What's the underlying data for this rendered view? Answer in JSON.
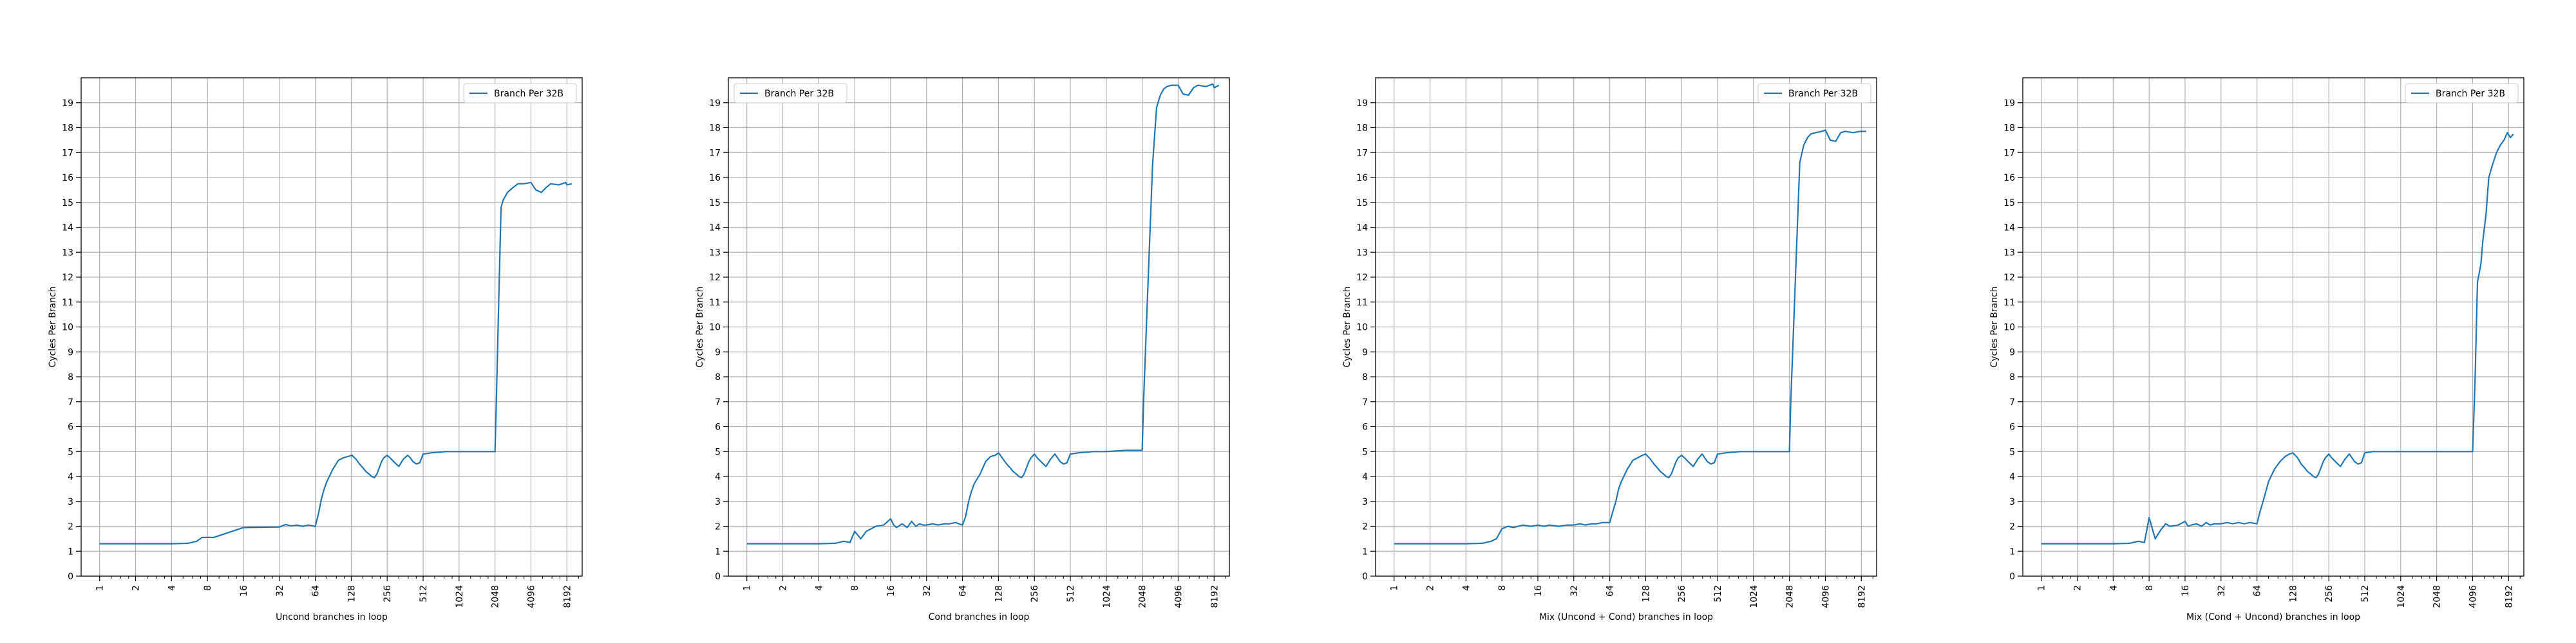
{
  "chart_data": [
    {
      "type": "line",
      "xlabel": "Uncond branches in loop",
      "ylabel": "Cycles Per Branch",
      "xscale": "log2",
      "xlim": [
        0.7,
        11000
      ],
      "ylim": [
        0,
        20
      ],
      "xticks": [
        1,
        2,
        4,
        8,
        16,
        32,
        64,
        128,
        256,
        512,
        1024,
        2048,
        4096,
        8192
      ],
      "yticks": [
        0,
        1,
        2,
        3,
        4,
        5,
        6,
        7,
        8,
        9,
        10,
        11,
        12,
        13,
        14,
        15,
        16,
        17,
        18,
        19
      ],
      "grid": true,
      "legend_position": "upper right",
      "series": [
        {
          "name": "Branch Per 32B",
          "color": "#1f77b4",
          "x": [
            1,
            2,
            4,
            5.5,
            6.5,
            7.2,
            8,
            9,
            16,
            32,
            36,
            40,
            45,
            50,
            56,
            64,
            68,
            72,
            76,
            80,
            90,
            100,
            110,
            120,
            130,
            140,
            150,
            160,
            170,
            180,
            190,
            200,
            210,
            220,
            230,
            240,
            256,
            270,
            290,
            320,
            350,
            380,
            400,
            420,
            450,
            480,
            512,
            600,
            800,
            1024,
            1500,
            2000,
            2048,
            2100,
            2200,
            2300,
            2400,
            2600,
            2900,
            3200,
            3600,
            4096,
            4500,
            5000,
            5500,
            6000,
            7000,
            8000,
            8192,
            9000
          ],
          "values": [
            1.3,
            1.3,
            1.3,
            1.32,
            1.4,
            1.55,
            1.55,
            1.55,
            1.95,
            1.97,
            2.07,
            2.02,
            2.05,
            2.0,
            2.05,
            2.0,
            2.5,
            3.1,
            3.5,
            3.8,
            4.3,
            4.65,
            4.75,
            4.8,
            4.85,
            4.7,
            4.5,
            4.35,
            4.2,
            4.1,
            4.0,
            3.95,
            4.1,
            4.35,
            4.6,
            4.75,
            4.85,
            4.75,
            4.6,
            4.4,
            4.7,
            4.85,
            4.75,
            4.6,
            4.5,
            4.55,
            4.9,
            4.95,
            5.0,
            5.0,
            5.0,
            5.0,
            5.0,
            7.0,
            11.0,
            14.8,
            15.1,
            15.4,
            15.6,
            15.75,
            15.75,
            15.8,
            15.5,
            15.4,
            15.6,
            15.75,
            15.7,
            15.8,
            15.7,
            15.75
          ]
        }
      ]
    },
    {
      "type": "line",
      "xlabel": "Cond branches in loop",
      "ylabel": "Cycles Per Branch",
      "xscale": "log2",
      "xlim": [
        0.7,
        11000
      ],
      "ylim": [
        0,
        20
      ],
      "xticks": [
        1,
        2,
        4,
        8,
        16,
        32,
        64,
        128,
        256,
        512,
        1024,
        2048,
        4096,
        8192
      ],
      "yticks": [
        0,
        1,
        2,
        3,
        4,
        5,
        6,
        7,
        8,
        9,
        10,
        11,
        12,
        13,
        14,
        15,
        16,
        17,
        18,
        19
      ],
      "grid": true,
      "legend_position": "upper left",
      "series": [
        {
          "name": "Branch Per 32B",
          "color": "#1f77b4",
          "x": [
            1,
            2,
            4,
            5.5,
            6.5,
            7.3,
            8,
            9,
            10,
            11,
            12,
            14,
            16,
            17,
            18,
            20,
            22,
            24,
            26,
            28,
            30,
            32,
            36,
            40,
            45,
            50,
            56,
            64,
            68,
            72,
            76,
            80,
            90,
            100,
            110,
            120,
            128,
            140,
            150,
            160,
            170,
            180,
            190,
            200,
            210,
            220,
            230,
            240,
            256,
            270,
            290,
            320,
            350,
            380,
            400,
            420,
            450,
            480,
            512,
            600,
            800,
            1024,
            1500,
            2048,
            2100,
            2300,
            2500,
            2700,
            2900,
            3100,
            3300,
            3600,
            4096,
            4500,
            5000,
            5500,
            6000,
            7000,
            8000,
            8192,
            9000
          ],
          "values": [
            1.3,
            1.3,
            1.3,
            1.32,
            1.4,
            1.35,
            1.8,
            1.5,
            1.8,
            1.9,
            2.0,
            2.05,
            2.3,
            2.05,
            1.95,
            2.1,
            1.95,
            2.2,
            2.0,
            2.1,
            2.05,
            2.05,
            2.1,
            2.05,
            2.1,
            2.1,
            2.15,
            2.05,
            2.4,
            3.0,
            3.4,
            3.7,
            4.1,
            4.6,
            4.8,
            4.85,
            4.95,
            4.7,
            4.5,
            4.35,
            4.2,
            4.1,
            4.0,
            3.95,
            4.1,
            4.35,
            4.6,
            4.75,
            4.9,
            4.75,
            4.6,
            4.4,
            4.7,
            4.9,
            4.75,
            4.6,
            4.5,
            4.55,
            4.9,
            4.95,
            5.0,
            5.0,
            5.05,
            5.05,
            7.0,
            12.0,
            16.5,
            18.8,
            19.3,
            19.55,
            19.65,
            19.7,
            19.7,
            19.35,
            19.3,
            19.6,
            19.7,
            19.65,
            19.75,
            19.6,
            19.7
          ]
        }
      ]
    },
    {
      "type": "line",
      "xlabel": "Mix (Uncond + Cond) branches in loop",
      "ylabel": "Cycles Per Branch",
      "xscale": "log2",
      "xlim": [
        0.7,
        11000
      ],
      "ylim": [
        0,
        20
      ],
      "xticks": [
        1,
        2,
        4,
        8,
        16,
        32,
        64,
        128,
        256,
        512,
        1024,
        2048,
        4096,
        8192
      ],
      "yticks": [
        0,
        1,
        2,
        3,
        4,
        5,
        6,
        7,
        8,
        9,
        10,
        11,
        12,
        13,
        14,
        15,
        16,
        17,
        18,
        19
      ],
      "grid": true,
      "legend_position": "upper right",
      "series": [
        {
          "name": "Branch Per 32B",
          "color": "#1f77b4",
          "x": [
            1,
            2,
            4,
            5.5,
            6.5,
            7.2,
            8,
            9,
            10,
            12,
            14,
            16,
            18,
            20,
            24,
            28,
            32,
            36,
            40,
            45,
            50,
            56,
            64,
            68,
            72,
            76,
            80,
            90,
            100,
            110,
            120,
            128,
            140,
            150,
            160,
            170,
            180,
            190,
            200,
            210,
            220,
            230,
            240,
            256,
            270,
            290,
            320,
            350,
            380,
            400,
            420,
            450,
            480,
            512,
            600,
            800,
            1024,
            1500,
            2048,
            2100,
            2300,
            2500,
            2700,
            2900,
            3100,
            3400,
            3800,
            4096,
            4500,
            5000,
            5500,
            6000,
            7000,
            8000,
            8192,
            9000
          ],
          "values": [
            1.3,
            1.3,
            1.3,
            1.32,
            1.4,
            1.5,
            1.9,
            2.0,
            1.95,
            2.05,
            2.0,
            2.05,
            2.0,
            2.05,
            2.0,
            2.05,
            2.05,
            2.1,
            2.05,
            2.1,
            2.1,
            2.15,
            2.15,
            2.6,
            3.0,
            3.5,
            3.8,
            4.3,
            4.65,
            4.75,
            4.85,
            4.9,
            4.7,
            4.5,
            4.35,
            4.2,
            4.1,
            4.0,
            3.95,
            4.1,
            4.35,
            4.6,
            4.75,
            4.85,
            4.75,
            4.6,
            4.4,
            4.7,
            4.9,
            4.75,
            4.6,
            4.5,
            4.55,
            4.9,
            4.95,
            5.0,
            5.0,
            5.0,
            5.0,
            7.0,
            12.0,
            16.6,
            17.3,
            17.6,
            17.75,
            17.8,
            17.85,
            17.9,
            17.5,
            17.45,
            17.8,
            17.85,
            17.8,
            17.85,
            17.85,
            17.85
          ]
        }
      ]
    },
    {
      "type": "line",
      "xlabel": "Mix (Cond + Uncond) branches in loop",
      "ylabel": "Cycles Per Branch",
      "xscale": "log2",
      "xlim": [
        0.7,
        11000
      ],
      "ylim": [
        0,
        20
      ],
      "xticks": [
        1,
        2,
        4,
        8,
        16,
        32,
        64,
        128,
        256,
        512,
        1024,
        2048,
        4096,
        8192
      ],
      "yticks": [
        0,
        1,
        2,
        3,
        4,
        5,
        6,
        7,
        8,
        9,
        10,
        11,
        12,
        13,
        14,
        15,
        16,
        17,
        18,
        19
      ],
      "grid": true,
      "legend_position": "upper right",
      "series": [
        {
          "name": "Branch Per 32B",
          "color": "#1f77b4",
          "x": [
            1,
            2,
            4,
            5.5,
            6.5,
            7.3,
            8,
            9,
            10,
            11,
            12,
            14,
            16,
            17,
            18,
            20,
            22,
            24,
            26,
            28,
            30,
            32,
            36,
            40,
            45,
            50,
            56,
            64,
            68,
            72,
            76,
            80,
            90,
            100,
            110,
            120,
            128,
            140,
            150,
            160,
            170,
            180,
            190,
            200,
            210,
            220,
            230,
            240,
            256,
            270,
            290,
            320,
            350,
            380,
            400,
            420,
            450,
            480,
            512,
            600,
            800,
            1024,
            1500,
            2048,
            3000,
            4096,
            4300,
            4500,
            4800,
            5000,
            5300,
            5600,
            6000,
            6500,
            7000,
            7500,
            8000,
            8500,
            9000
          ],
          "values": [
            1.3,
            1.3,
            1.3,
            1.32,
            1.4,
            1.35,
            2.35,
            1.5,
            1.85,
            2.1,
            2.0,
            2.05,
            2.2,
            2.0,
            2.05,
            2.1,
            2.0,
            2.15,
            2.05,
            2.1,
            2.1,
            2.1,
            2.15,
            2.1,
            2.15,
            2.1,
            2.15,
            2.1,
            2.6,
            3.0,
            3.4,
            3.8,
            4.3,
            4.6,
            4.8,
            4.9,
            4.95,
            4.75,
            4.5,
            4.35,
            4.2,
            4.1,
            4.0,
            3.95,
            4.1,
            4.35,
            4.6,
            4.75,
            4.9,
            4.75,
            4.6,
            4.4,
            4.7,
            4.9,
            4.75,
            4.6,
            4.5,
            4.55,
            4.95,
            5.0,
            5.0,
            5.0,
            5.0,
            5.0,
            5.0,
            5.0,
            8.0,
            11.8,
            12.5,
            13.5,
            14.5,
            16.0,
            16.5,
            17.0,
            17.3,
            17.5,
            17.8,
            17.6,
            17.75
          ]
        }
      ]
    }
  ]
}
